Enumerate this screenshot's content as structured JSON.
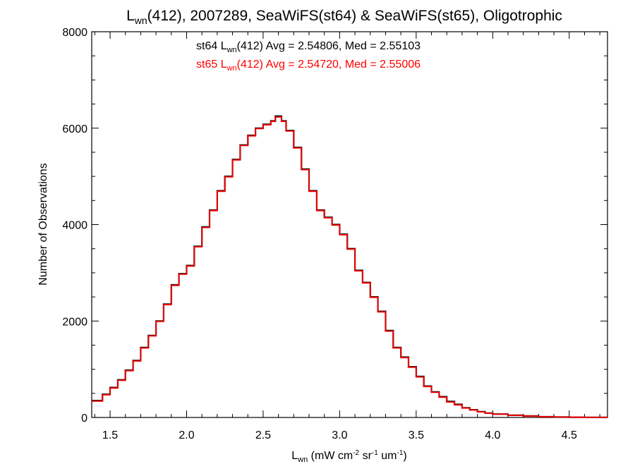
{
  "title": {
    "base": "L",
    "sub": "wn",
    "rest": "(412), 2007289, SeaWiFS(st64) & SeaWiFS(st65), Oligotrophic"
  },
  "xaxis": {
    "label_base": "L",
    "label_sub": "wn",
    "label_p1": " (mW cm",
    "label_sup1": "-2",
    "label_p2": " sr",
    "label_sup2": "-1",
    "label_p3": " um",
    "label_sup3": "-1",
    "label_p4": ")"
  },
  "yaxis": {
    "label": "Number of Observations"
  },
  "annotations": {
    "a1": {
      "pre": "st64 L",
      "sub": "wn",
      "post": "(412) Avg = 2.54806, Med = 2.55103",
      "color": "#000000"
    },
    "a2": {
      "pre": "st65 L",
      "sub": "wn",
      "post": "(412) Avg = 2.54720, Med = 2.55006",
      "color": "#ff0000"
    }
  },
  "chart_data": {
    "type": "line",
    "step": true,
    "xlim": [
      1.38,
      4.75
    ],
    "ylim": [
      0,
      8000
    ],
    "xticks": [
      1.5,
      2.0,
      2.5,
      3.0,
      3.5,
      4.0,
      4.5
    ],
    "xtick_labels": [
      "1.5",
      "2.0",
      "2.5",
      "3.0",
      "3.5",
      "4.0",
      "4.5"
    ],
    "yticks": [
      0,
      2000,
      4000,
      6000,
      8000
    ],
    "ytick_labels": [
      "0",
      "2000",
      "4000",
      "6000",
      "8000"
    ],
    "x": [
      1.38,
      1.45,
      1.5,
      1.55,
      1.6,
      1.65,
      1.7,
      1.75,
      1.8,
      1.85,
      1.9,
      1.95,
      2.0,
      2.05,
      2.1,
      2.15,
      2.2,
      2.25,
      2.3,
      2.35,
      2.4,
      2.45,
      2.5,
      2.55,
      2.58,
      2.62,
      2.65,
      2.7,
      2.75,
      2.8,
      2.85,
      2.9,
      2.95,
      3.0,
      3.05,
      3.1,
      3.15,
      3.2,
      3.25,
      3.3,
      3.35,
      3.4,
      3.45,
      3.5,
      3.55,
      3.6,
      3.65,
      3.7,
      3.75,
      3.8,
      3.85,
      3.9,
      3.95,
      4.0,
      4.1,
      4.2,
      4.3,
      4.4,
      4.5,
      4.6,
      4.7,
      4.75
    ],
    "series": [
      {
        "color": "#000000",
        "values": [
          350,
          480,
          620,
          780,
          980,
          1180,
          1450,
          1700,
          2000,
          2350,
          2750,
          2980,
          3150,
          3550,
          3950,
          4300,
          4700,
          5000,
          5350,
          5650,
          5850,
          6000,
          6080,
          6150,
          6250,
          6150,
          5950,
          5600,
          5150,
          4700,
          4300,
          4150,
          4000,
          3800,
          3500,
          3050,
          2800,
          2500,
          2200,
          1800,
          1450,
          1250,
          1050,
          850,
          650,
          530,
          430,
          330,
          270,
          200,
          160,
          120,
          90,
          70,
          45,
          30,
          15,
          10,
          5,
          3,
          2,
          1
        ]
      },
      {
        "color": "#ff0000",
        "values": [
          340,
          470,
          610,
          770,
          970,
          1170,
          1440,
          1690,
          1990,
          2340,
          2740,
          2970,
          3140,
          3540,
          3940,
          4290,
          4690,
          4990,
          5340,
          5640,
          5840,
          5990,
          6070,
          6140,
          6230,
          6140,
          5940,
          5590,
          5140,
          4690,
          4290,
          4140,
          3990,
          3790,
          3490,
          3040,
          2790,
          2490,
          2190,
          1790,
          1440,
          1240,
          1040,
          840,
          640,
          520,
          420,
          320,
          260,
          195,
          155,
          115,
          88,
          68,
          44,
          29,
          14,
          9,
          4,
          2,
          1,
          0
        ]
      }
    ]
  }
}
